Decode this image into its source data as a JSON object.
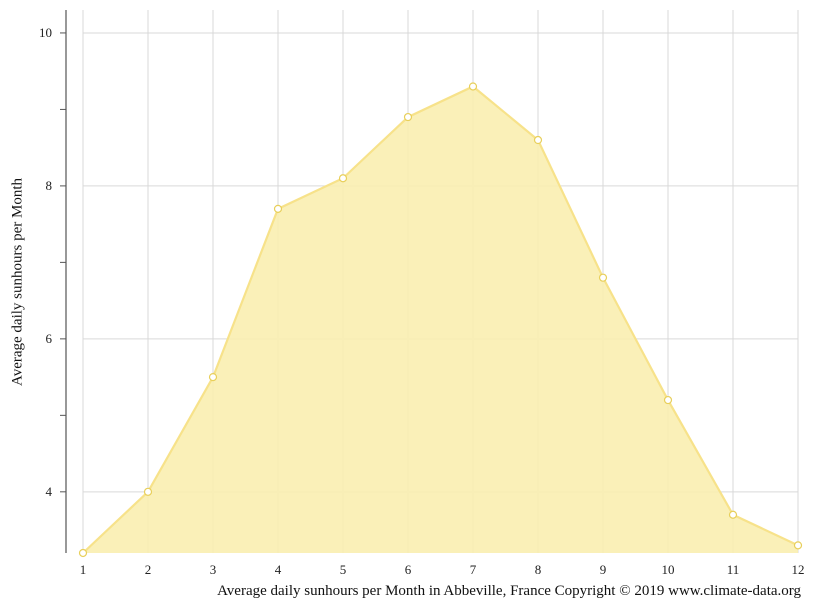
{
  "chart_data": {
    "type": "area",
    "title": "",
    "xlabel": "",
    "ylabel": "Average daily sunhours per Month",
    "caption": "Average daily sunhours per Month in Abbeville, France Copyright © 2019 www.climate-data.org",
    "x": [
      1,
      2,
      3,
      4,
      5,
      6,
      7,
      8,
      9,
      10,
      11,
      12
    ],
    "series": [
      {
        "name": "",
        "values": [
          3.2,
          4.0,
          5.5,
          7.7,
          8.1,
          8.9,
          9.3,
          8.6,
          6.8,
          5.2,
          3.7,
          3.3
        ]
      }
    ],
    "y_ticks": [
      4,
      6,
      8,
      10
    ],
    "xlim": [
      1,
      12
    ],
    "ylim": [
      3.2,
      10.3
    ],
    "grid": true,
    "colors": {
      "fill": "#faeeb0",
      "line": "#f7e28a",
      "marker_fill": "#ffffff",
      "grid": "#d9d9d9",
      "axis": "#555555"
    }
  }
}
